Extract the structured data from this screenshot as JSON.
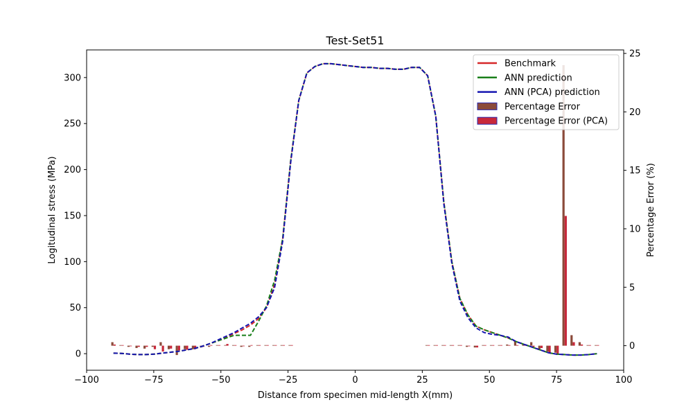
{
  "chart_data": {
    "type": "line",
    "title": "Test-Set51",
    "xlabel": "Distance from specimen mid-length X(mm)",
    "ylabel": "Logitudinal stress (MPa)",
    "y2label": "Percentage Error (%)",
    "xlim": [
      -100,
      100
    ],
    "ylim": [
      -18,
      330
    ],
    "y2lim": [
      -2.1,
      25.3
    ],
    "xticks": [
      -100,
      -75,
      -50,
      -25,
      0,
      25,
      50,
      75,
      100
    ],
    "yticks": [
      0,
      50,
      100,
      150,
      200,
      250,
      300
    ],
    "y2ticks": [
      0,
      5,
      10,
      15,
      20,
      25
    ],
    "grid": false,
    "legend_position": "top-right",
    "colors": {
      "benchmark": "#d62728",
      "ann": "#1a7f1a",
      "ann_pca": "#1515b0",
      "error": "#8b4a3a",
      "error_pca": "#c8283a",
      "error_edge": "#2a2ab0"
    },
    "x": [
      -90,
      -87,
      -84,
      -81,
      -78,
      -75,
      -72,
      -69,
      -66,
      -63,
      -60,
      -57,
      -54,
      -51,
      -48,
      -45,
      -42,
      -39,
      -36,
      -33,
      -30,
      -27,
      -24,
      -21,
      -18,
      -15,
      -12,
      -9,
      -6,
      -3,
      0,
      3,
      6,
      9,
      12,
      15,
      18,
      21,
      24,
      27,
      30,
      33,
      36,
      39,
      42,
      45,
      48,
      51,
      54,
      57,
      60,
      63,
      66,
      69,
      72,
      75,
      78,
      81,
      84,
      87,
      90
    ],
    "series": [
      {
        "name": "Benchmark",
        "values": [
          0.5,
          0.3,
          -0.5,
          -1,
          -1,
          -0.5,
          0.5,
          1.5,
          2.5,
          4,
          5.5,
          8,
          11,
          14,
          18,
          22,
          26,
          31,
          38,
          50,
          75,
          125,
          210,
          275,
          305,
          312,
          315,
          315,
          314,
          313,
          312,
          311,
          311,
          310,
          310,
          309,
          309,
          311,
          311,
          302,
          258,
          165,
          100,
          60,
          42,
          30,
          26,
          23,
          20,
          17,
          13,
          10,
          7,
          4,
          1,
          -0.5,
          -1,
          -1.5,
          -1.5,
          -1,
          0
        ],
        "style": "dashed"
      },
      {
        "name": "ANN prediction",
        "values": [
          0.5,
          0.3,
          -0.5,
          -1,
          -1,
          -0.5,
          0.5,
          1.5,
          2.5,
          4,
          5.5,
          8,
          11,
          14,
          17,
          20,
          20,
          20,
          35,
          52,
          80,
          125,
          210,
          275,
          305,
          312,
          315,
          315,
          314,
          313,
          312,
          311,
          311,
          310,
          310,
          309,
          309,
          311,
          311,
          302,
          258,
          165,
          100,
          60,
          42,
          30,
          26,
          23,
          20,
          17,
          13,
          10,
          7,
          4,
          1,
          -0.5,
          -1,
          -1.5,
          -1.5,
          -1,
          0
        ],
        "style": "dashed"
      },
      {
        "name": "ANN (PCA) prediction",
        "values": [
          0.5,
          0.3,
          -0.5,
          -1,
          -1,
          -0.5,
          0.5,
          1.5,
          2.5,
          4,
          5.5,
          8,
          11,
          15,
          19,
          23,
          28,
          33,
          40,
          50,
          72,
          122,
          208,
          275,
          305,
          312,
          315,
          315,
          314,
          313,
          312,
          311,
          311,
          310,
          310,
          309,
          309,
          311,
          311,
          302,
          258,
          163,
          98,
          57,
          39,
          28,
          23,
          21,
          20,
          18,
          13,
          10,
          7,
          4,
          1,
          -0.5,
          -1,
          -1.5,
          -1.5,
          -1,
          0
        ],
        "style": "dashed"
      }
    ],
    "error_bars": [
      {
        "name": "Percentage Error",
        "x": [
          -90,
          -87,
          -84,
          -81,
          -78,
          -75,
          -72,
          -69,
          -66,
          -63,
          -60,
          -57,
          -54,
          -51,
          -48,
          -45,
          -42,
          -39,
          -36,
          -33,
          -30,
          -27,
          -24,
          27,
          30,
          33,
          36,
          39,
          42,
          45,
          48,
          51,
          54,
          57,
          60,
          63,
          66,
          69,
          72,
          75,
          78,
          81,
          84,
          87,
          90
        ],
        "values": [
          0.3,
          0.05,
          -0.1,
          -0.2,
          -0.25,
          -0.1,
          0.3,
          -0.3,
          -0.8,
          -0.3,
          -0.3,
          -0.15,
          -0.1,
          0.05,
          0.05,
          0.05,
          -0.1,
          -0.1,
          0.05,
          0.05,
          0.05,
          0.05,
          0.05,
          0.05,
          0.05,
          0.05,
          0.05,
          0.05,
          -0.1,
          -0.15,
          0.05,
          0.05,
          0.05,
          0.1,
          0.4,
          0.15,
          0.3,
          -0.3,
          -0.5,
          -0.6,
          24.0,
          0.9,
          0.3,
          0.05,
          0.05
        ]
      },
      {
        "name": "Percentage Error (PCA)",
        "x": [
          -90,
          -87,
          -84,
          -81,
          -78,
          -75,
          -72,
          -69,
          -66,
          -63,
          -60,
          -57,
          -54,
          -51,
          -48,
          -45,
          -42,
          -39,
          -36,
          -33,
          -30,
          -27,
          -24,
          27,
          30,
          33,
          36,
          39,
          42,
          45,
          48,
          51,
          54,
          57,
          60,
          63,
          66,
          69,
          72,
          75,
          78,
          81,
          84,
          87,
          90
        ],
        "values": [
          0.1,
          0.05,
          -0.05,
          -0.1,
          -0.1,
          -0.3,
          -0.5,
          -0.25,
          -0.4,
          -0.35,
          -0.3,
          -0.1,
          0.05,
          0.05,
          0.15,
          0.05,
          -0.05,
          0.05,
          0.05,
          0.05,
          0.05,
          0.05,
          0.05,
          0.05,
          0.05,
          0.05,
          0.05,
          0.05,
          -0.05,
          -0.15,
          0.05,
          0.05,
          0.05,
          0.05,
          0.05,
          0.1,
          -0.1,
          -0.2,
          -0.6,
          -0.7,
          11.1,
          0.3,
          0.1,
          0.05,
          0.05
        ]
      }
    ]
  }
}
